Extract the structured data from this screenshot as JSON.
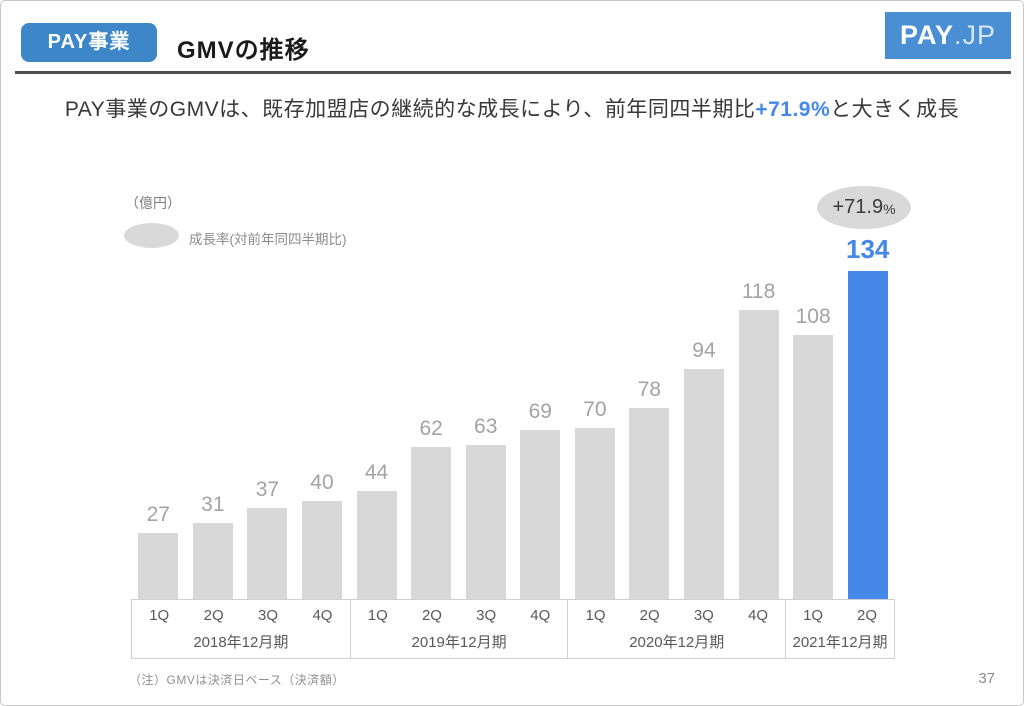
{
  "header": {
    "badge": "PAY事業",
    "title": "GMVの推移",
    "logo_pay": "PAY",
    "logo_jp": ".JP"
  },
  "subtitle": {
    "prefix": "PAY事業のGMVは、既存加盟店の継続的な成長により、前年同四半期比",
    "highlight": "+71.9%",
    "suffix": "と大きく成長"
  },
  "chart_data": {
    "type": "bar",
    "title": "GMVの推移",
    "unit_label": "（億円）",
    "legend_label": "成長率(対前年同四半期比)",
    "growth_rate_value": "+71.9",
    "growth_rate_unit": "%",
    "categories": [
      "1Q",
      "2Q",
      "3Q",
      "4Q",
      "1Q",
      "2Q",
      "3Q",
      "4Q",
      "1Q",
      "2Q",
      "3Q",
      "4Q",
      "1Q",
      "2Q"
    ],
    "groups": [
      {
        "label": "2018年12月期",
        "quarters": 4
      },
      {
        "label": "2019年12月期",
        "quarters": 4
      },
      {
        "label": "2020年12月期",
        "quarters": 4
      },
      {
        "label": "2021年12月期",
        "quarters": 2
      }
    ],
    "values": [
      27,
      31,
      37,
      40,
      44,
      62,
      63,
      69,
      70,
      78,
      94,
      118,
      108,
      134
    ],
    "highlight_index": 13,
    "ylim": [
      0,
      140
    ],
    "grid": false,
    "legend_position": "top-left"
  },
  "colors": {
    "accent": "#4588E8",
    "badge_bg": "#3D87C8",
    "logo_bg": "#4A8FD3",
    "bar": "#D8D8D8",
    "ellipse": "#D9D9D9"
  },
  "footnote": "（注）GMVは決済日ベース（決済額）",
  "page_number": "37"
}
